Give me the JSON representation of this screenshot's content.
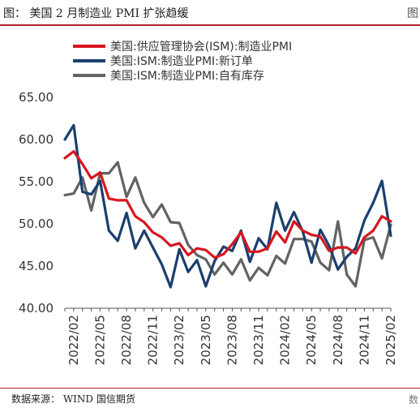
{
  "header": {
    "title": "图：  美国 2 月制造业 PMI 扩张趋缓",
    "corner_mark": "图"
  },
  "footer": {
    "source": "数据来源：  WIND   国信期货",
    "corner_mark": "数"
  },
  "chart_data": {
    "type": "line",
    "title": "",
    "xlabel": "",
    "ylabel": "",
    "ylim": [
      40,
      65
    ],
    "yticks": [
      "40.00",
      "45.00",
      "50.00",
      "55.00",
      "60.00",
      "65.00"
    ],
    "x_tick_labels": [
      "2022/02",
      "2022/05",
      "2022/08",
      "2022/11",
      "2023/02",
      "2023/05",
      "2023/08",
      "2023/11",
      "2024/02",
      "2024/05",
      "2024/08",
      "2024/11",
      "2025/02"
    ],
    "legend_position": "top",
    "grid": false,
    "x": [
      "2022/01",
      "2022/02",
      "2022/03",
      "2022/04",
      "2022/05",
      "2022/06",
      "2022/07",
      "2022/08",
      "2022/09",
      "2022/10",
      "2022/11",
      "2022/12",
      "2023/01",
      "2023/02",
      "2023/03",
      "2023/04",
      "2023/05",
      "2023/06",
      "2023/07",
      "2023/08",
      "2023/09",
      "2023/10",
      "2023/11",
      "2023/12",
      "2024/01",
      "2024/02",
      "2024/03",
      "2024/04",
      "2024/05",
      "2024/06",
      "2024/07",
      "2024/08",
      "2024/09",
      "2024/10",
      "2024/11",
      "2024/12",
      "2025/01",
      "2025/02"
    ],
    "series": [
      {
        "name": "美国:供应管理协会(ISM):制造业PMI",
        "color": "#d7161f",
        "values": [
          57.8,
          58.6,
          57.1,
          55.4,
          56.1,
          53.0,
          52.8,
          52.8,
          50.9,
          50.2,
          49.0,
          48.4,
          47.4,
          47.7,
          46.3,
          47.1,
          46.9,
          46.0,
          46.4,
          47.6,
          49.0,
          46.7,
          46.7,
          47.1,
          49.1,
          47.8,
          50.3,
          49.2,
          48.7,
          48.5,
          46.8,
          47.2,
          47.2,
          46.5,
          48.4,
          49.2,
          50.9,
          50.3
        ]
      },
      {
        "name": "美国:ISM:制造业PMI:新订单",
        "color": "#1b3f6e",
        "values": [
          60.0,
          61.7,
          53.8,
          53.5,
          55.1,
          49.2,
          48.0,
          51.3,
          47.1,
          49.2,
          47.2,
          45.2,
          42.5,
          47.0,
          44.3,
          45.7,
          42.6,
          45.6,
          47.3,
          46.8,
          49.2,
          45.5,
          48.3,
          47.0,
          52.5,
          49.2,
          51.4,
          49.1,
          45.4,
          49.3,
          47.4,
          44.6,
          46.1,
          47.1,
          50.4,
          52.5,
          55.1,
          48.6
        ]
      },
      {
        "name": "美国:ISM:制造业PMI:自有库存",
        "color": "#636363",
        "values": [
          53.4,
          53.6,
          55.5,
          51.6,
          56.0,
          56.0,
          57.3,
          53.2,
          55.5,
          52.5,
          50.8,
          52.3,
          50.2,
          50.1,
          47.5,
          46.3,
          45.8,
          44.0,
          45.4,
          44.0,
          45.8,
          43.3,
          44.8,
          43.9,
          46.2,
          45.3,
          48.2,
          48.2,
          47.9,
          45.4,
          44.5,
          50.3,
          44.0,
          42.6,
          48.1,
          48.4,
          45.9,
          49.9
        ]
      }
    ]
  }
}
